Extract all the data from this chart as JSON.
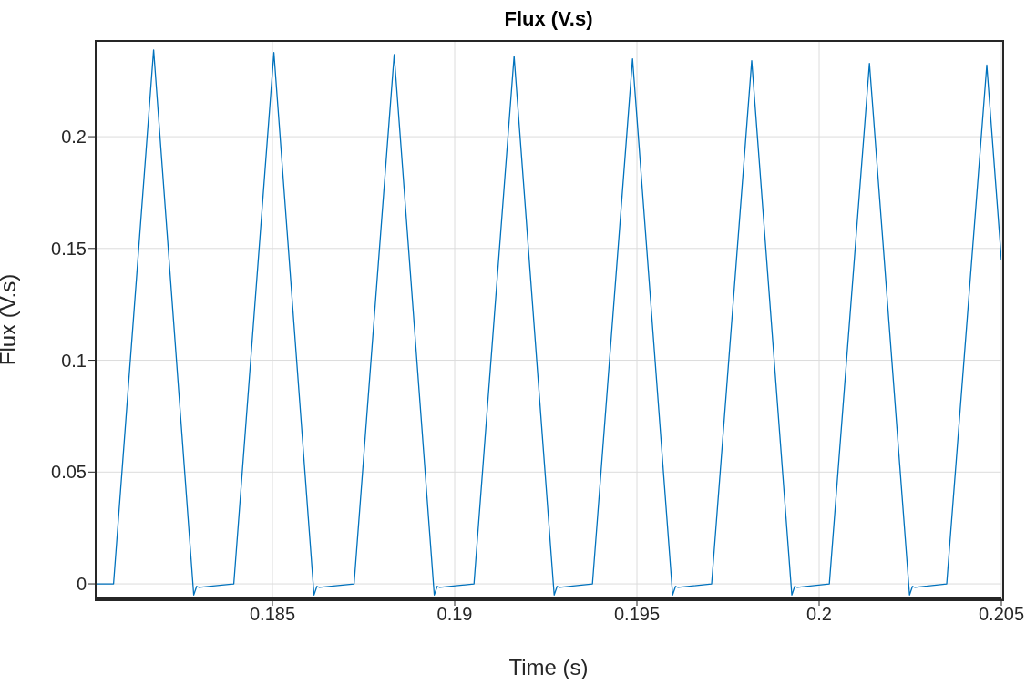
{
  "chart_data": {
    "type": "line",
    "title": "Flux (V.s)",
    "xlabel": "Time (s)",
    "ylabel": "Flux (V.s)",
    "xlim": [
      0.18015,
      0.205
    ],
    "xticks": [
      0.185,
      0.19,
      0.195,
      0.2,
      0.205
    ],
    "ylim": [
      -0.0065,
      0.2428
    ],
    "yticks": [
      0,
      0.05,
      0.1,
      0.15,
      0.2
    ],
    "grid": true,
    "marker": "none",
    "line_style": "solid",
    "series": [
      {
        "color": "#0072bd",
        "x": [
          0.18015,
          0.18064,
          0.18174,
          0.18284,
          0.18292,
          0.18299,
          0.18394,
          0.18504,
          0.18614,
          0.18622,
          0.18629,
          0.18724,
          0.18834,
          0.18944,
          0.18952,
          0.18959,
          0.19053,
          0.19163,
          0.19273,
          0.19281,
          0.19288,
          0.19378,
          0.19488,
          0.19598,
          0.19606,
          0.19613,
          0.19705,
          0.19815,
          0.19925,
          0.19933,
          0.1994,
          0.20028,
          0.20138,
          0.20248,
          0.20256,
          0.20263,
          0.2035,
          0.2046,
          0.205
        ],
        "values": [
          0,
          0,
          0.2388,
          -0.005,
          -0.0011,
          -0.0016,
          0,
          0.2376,
          -0.005,
          -0.0011,
          -0.0016,
          0,
          0.2367,
          -0.005,
          -0.0011,
          -0.0016,
          0,
          0.236,
          -0.005,
          -0.0011,
          -0.0016,
          0,
          0.2348,
          -0.005,
          -0.0011,
          -0.0016,
          0,
          0.234,
          -0.005,
          -0.0011,
          -0.0016,
          0,
          0.2328,
          -0.005,
          -0.0011,
          -0.0016,
          0,
          0.232,
          0.145
        ]
      }
    ]
  }
}
